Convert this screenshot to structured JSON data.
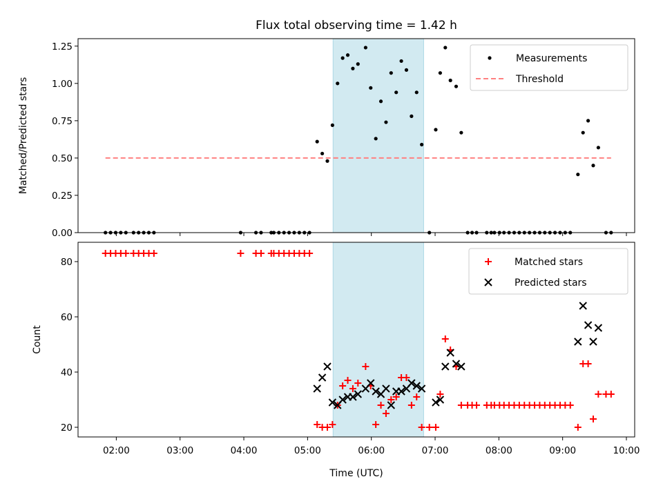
{
  "chart_data": {
    "type": "scatter",
    "title": "Flux total observing time = 1.42 h",
    "xlabel": "Time (UTC)",
    "x_tick_labels": [
      "02:00",
      "03:00",
      "04:00",
      "05:00",
      "06:00",
      "07:00",
      "08:00",
      "09:00",
      "10:00"
    ],
    "xlim_hours": [
      1.4,
      10.13
    ],
    "shaded_interval_hours": [
      5.4,
      6.82
    ],
    "shade_color": "#add8e6",
    "panels": [
      {
        "ylabel": "Matched/Predicted stars",
        "ylim": [
          0,
          1.3
        ],
        "y_tick_labels": [
          "0.00",
          "0.25",
          "0.50",
          "0.75",
          "1.00",
          "1.25"
        ],
        "legend_position": "upper-right",
        "series": [
          {
            "name": "Measurements",
            "color": "#000000",
            "marker": "dot",
            "x": [
              1.83,
              1.91,
              1.99,
              2.07,
              2.15,
              2.27,
              2.35,
              2.43,
              2.51,
              2.59,
              3.95,
              4.19,
              4.27,
              4.43,
              4.47,
              4.55,
              4.63,
              4.71,
              4.79,
              4.87,
              4.95,
              5.03,
              5.15,
              5.23,
              5.31,
              5.39,
              5.47,
              5.55,
              5.63,
              5.71,
              5.79,
              5.91,
              5.99,
              6.07,
              6.15,
              6.23,
              6.31,
              6.39,
              6.47,
              6.55,
              6.63,
              6.71,
              6.79,
              6.91,
              7.01,
              7.08,
              7.16,
              7.24,
              7.33,
              7.41,
              7.51,
              7.58,
              7.65,
              7.81,
              7.88,
              7.93,
              8.01,
              8.08,
              8.16,
              8.24,
              8.32,
              8.4,
              8.48,
              8.56,
              8.64,
              8.72,
              8.8,
              8.88,
              8.96,
              9.04,
              9.12,
              9.24,
              9.32,
              9.4,
              9.48,
              9.56,
              9.68,
              9.76
            ],
            "y": [
              0,
              0,
              0,
              0,
              0,
              0,
              0,
              0,
              0,
              0,
              0,
              0,
              0,
              0,
              0,
              0,
              0,
              0,
              0,
              0,
              0,
              0,
              0.61,
              0.53,
              0.48,
              0.72,
              1.0,
              1.17,
              1.19,
              1.1,
              1.13,
              1.24,
              0.97,
              0.63,
              0.88,
              0.74,
              1.07,
              0.94,
              1.15,
              1.09,
              0.78,
              0.94,
              0.59,
              0,
              0.69,
              1.07,
              1.24,
              1.02,
              0.98,
              0.67,
              0,
              0,
              0,
              0,
              0,
              0,
              0,
              0,
              0,
              0,
              0,
              0,
              0,
              0,
              0,
              0,
              0,
              0,
              0,
              0,
              0,
              0.39,
              0.67,
              0.75,
              0.45,
              0.57,
              0,
              0
            ]
          },
          {
            "name": "Threshold",
            "color": "#ff8080",
            "line_style": "dashed",
            "x": [
              1.83,
              9.76
            ],
            "y": [
              0.5,
              0.5
            ]
          }
        ]
      },
      {
        "ylabel": "Count",
        "ylim": [
          16.5,
          87
        ],
        "y_tick_labels": [
          "20",
          "40",
          "60",
          "80"
        ],
        "legend_position": "upper-right",
        "series": [
          {
            "name": "Matched stars",
            "color": "#ff0000",
            "marker": "plus",
            "x": [
              1.83,
              1.91,
              1.99,
              2.07,
              2.15,
              2.27,
              2.35,
              2.43,
              2.51,
              2.59,
              3.95,
              4.19,
              4.27,
              4.43,
              4.47,
              4.55,
              4.63,
              4.71,
              4.79,
              4.87,
              4.95,
              5.03,
              5.15,
              5.23,
              5.31,
              5.39,
              5.47,
              5.55,
              5.63,
              5.71,
              5.79,
              5.91,
              5.99,
              6.07,
              6.15,
              6.23,
              6.31,
              6.39,
              6.47,
              6.55,
              6.63,
              6.71,
              6.79,
              6.91,
              7.01,
              7.08,
              7.16,
              7.24,
              7.33,
              7.41,
              7.51,
              7.58,
              7.65,
              7.81,
              7.88,
              7.93,
              8.01,
              8.08,
              8.16,
              8.24,
              8.32,
              8.4,
              8.48,
              8.56,
              8.64,
              8.72,
              8.8,
              8.88,
              8.96,
              9.04,
              9.12,
              9.24,
              9.32,
              9.4,
              9.48,
              9.56,
              9.68,
              9.76
            ],
            "y": [
              83,
              83,
              83,
              83,
              83,
              83,
              83,
              83,
              83,
              83,
              83,
              83,
              83,
              83,
              83,
              83,
              83,
              83,
              83,
              83,
              83,
              83,
              21,
              20,
              20,
              21,
              28,
              35,
              37,
              34,
              36,
              42,
              35,
              21,
              28,
              25,
              30,
              31,
              38,
              38,
              28,
              31,
              20,
              20,
              20,
              32,
              52,
              48,
              42,
              28,
              28,
              28,
              28,
              28,
              28,
              28,
              28,
              28,
              28,
              28,
              28,
              28,
              28,
              28,
              28,
              28,
              28,
              28,
              28,
              28,
              28,
              20,
              43,
              43,
              23,
              32,
              32,
              32
            ]
          },
          {
            "name": "Predicted stars",
            "color": "#000000",
            "marker": "x",
            "x": [
              5.15,
              5.23,
              5.31,
              5.39,
              5.47,
              5.55,
              5.63,
              5.71,
              5.79,
              5.91,
              5.99,
              6.07,
              6.15,
              6.23,
              6.31,
              6.39,
              6.47,
              6.55,
              6.63,
              6.71,
              6.79,
              7.01,
              7.08,
              7.16,
              7.24,
              7.33,
              7.41,
              9.24,
              9.32,
              9.4,
              9.48,
              9.56
            ],
            "y": [
              34,
              38,
              42,
              29,
              28,
              30,
              31,
              31,
              32,
              34,
              36,
              33,
              32,
              34,
              28,
              33,
              33,
              34,
              36,
              35,
              34,
              29,
              30,
              42,
              47,
              43,
              42,
              51,
              64,
              57,
              51,
              56
            ]
          }
        ]
      }
    ]
  }
}
